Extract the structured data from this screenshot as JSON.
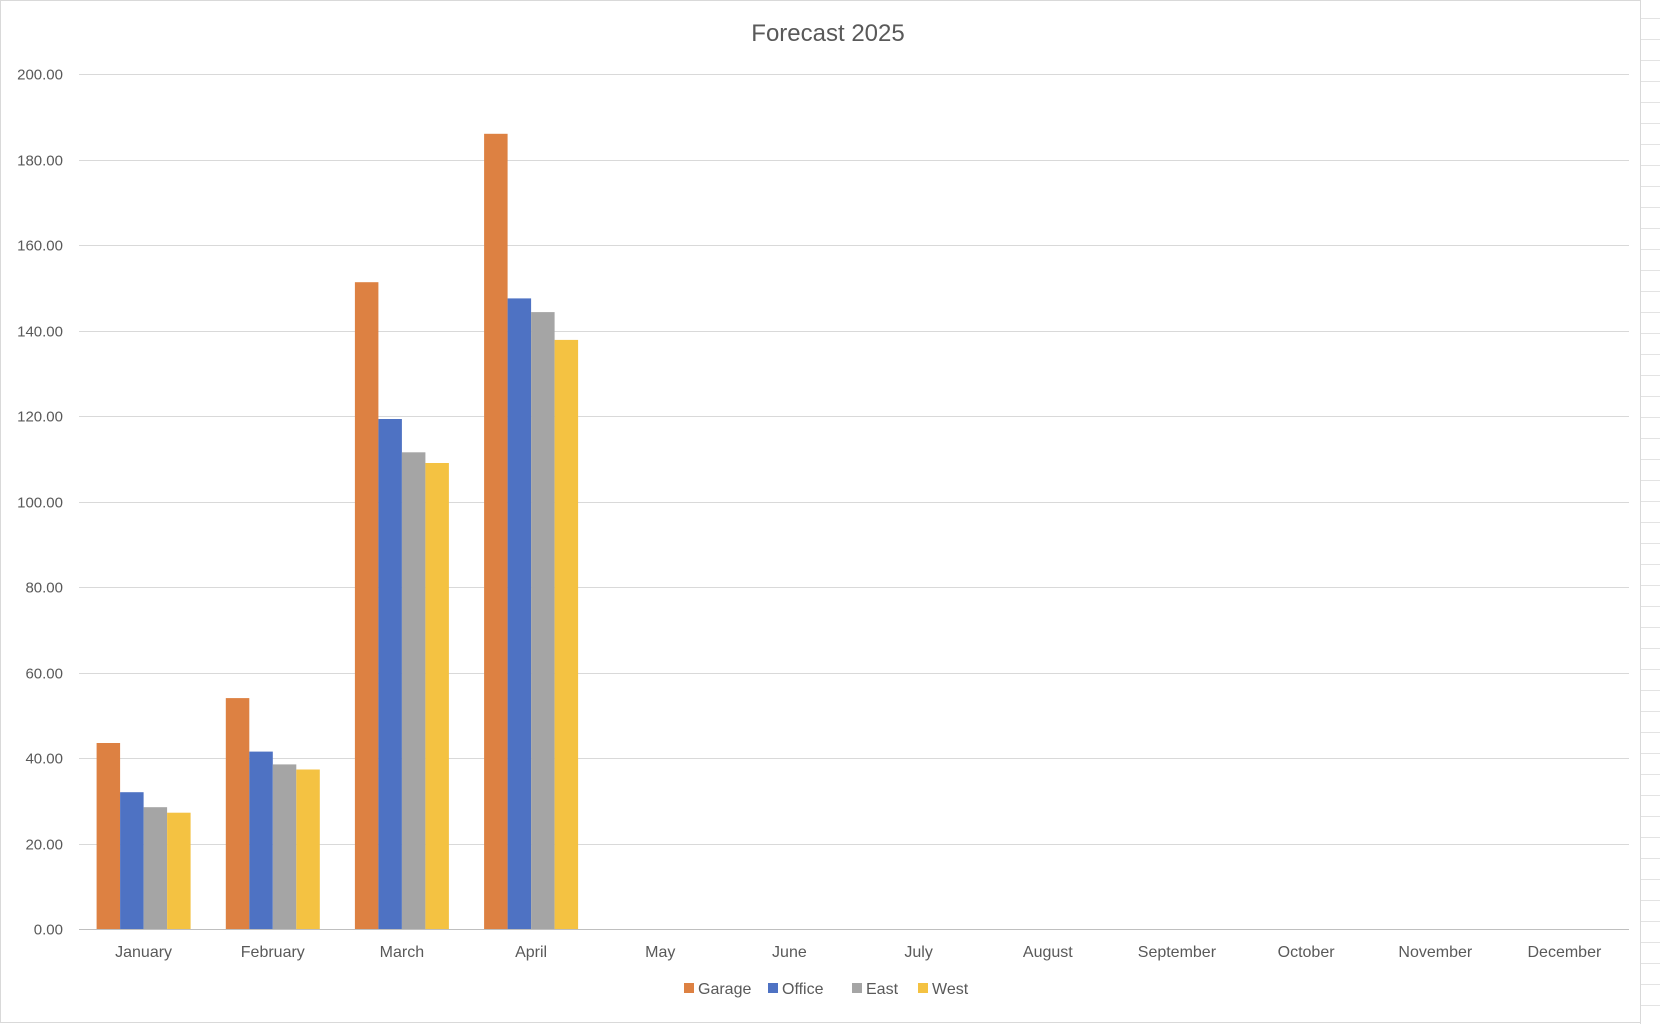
{
  "chart_data": {
    "type": "bar",
    "title": "Forecast 2025",
    "xlabel": "",
    "ylabel": "",
    "ylim": [
      0,
      200
    ],
    "yticks": [
      0,
      20,
      40,
      60,
      80,
      100,
      120,
      140,
      160,
      180,
      200
    ],
    "ytick_labels": [
      "0.00",
      "20.00",
      "40.00",
      "60.00",
      "80.00",
      "100.00",
      "120.00",
      "140.00",
      "160.00",
      "180.00",
      "200.00"
    ],
    "categories": [
      "January",
      "February",
      "March",
      "April",
      "May",
      "June",
      "July",
      "August",
      "September",
      "October",
      "November",
      "December"
    ],
    "series": [
      {
        "name": "Garage",
        "color": "#dd8142",
        "values": [
          43.5,
          54.0,
          151.3,
          186.0,
          null,
          null,
          null,
          null,
          null,
          null,
          null,
          null
        ]
      },
      {
        "name": "Office",
        "color": "#4e72c3",
        "values": [
          32.0,
          41.5,
          119.3,
          147.5,
          null,
          null,
          null,
          null,
          null,
          null,
          null,
          null
        ]
      },
      {
        "name": "East",
        "color": "#a5a5a5",
        "values": [
          28.5,
          38.5,
          111.5,
          144.3,
          null,
          null,
          null,
          null,
          null,
          null,
          null,
          null
        ]
      },
      {
        "name": "West",
        "color": "#f4c242",
        "values": [
          27.2,
          37.3,
          109.0,
          137.8,
          null,
          null,
          null,
          null,
          null,
          null,
          null,
          null
        ]
      }
    ],
    "grid": true,
    "legend": "bottom"
  },
  "colors": {
    "grid": "#d9d9d9",
    "axis": "#bfbfbf",
    "text": "#595959",
    "title": "#595959"
  }
}
